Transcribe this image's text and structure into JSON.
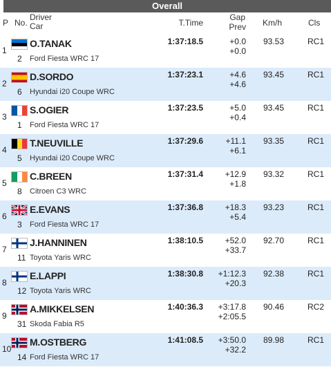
{
  "header": {
    "title": "Overall"
  },
  "columns": {
    "p": "P",
    "no": "No.",
    "driver": "Driver",
    "car": "Car",
    "time": "T.Time",
    "gap": "Gap",
    "prev": "Prev",
    "kmh": "Km/h",
    "cls": "Cls"
  },
  "rows": [
    {
      "p": "1",
      "no": "2",
      "driver": "O.TANAK",
      "car": "Ford Fiesta WRC 17",
      "time": "1:37:18.5",
      "gap": "+0.0",
      "prev": "+0.0",
      "kmh": "93.53",
      "cls": "RC1"
    },
    {
      "p": "2",
      "no": "6",
      "driver": "D.SORDO",
      "car": "Hyundai i20 Coupe WRC",
      "time": "1:37:23.1",
      "gap": "+4.6",
      "prev": "+4.6",
      "kmh": "93.45",
      "cls": "RC1"
    },
    {
      "p": "3",
      "no": "1",
      "driver": "S.OGIER",
      "car": "Ford Fiesta WRC 17",
      "time": "1:37:23.5",
      "gap": "+5.0",
      "prev": "+0.4",
      "kmh": "93.45",
      "cls": "RC1"
    },
    {
      "p": "4",
      "no": "5",
      "driver": "T.NEUVILLE",
      "car": "Hyundai i20 Coupe WRC",
      "time": "1:37:29.6",
      "gap": "+11.1",
      "prev": "+6.1",
      "kmh": "93.35",
      "cls": "RC1"
    },
    {
      "p": "5",
      "no": "8",
      "driver": "C.BREEN",
      "car": "Citroen C3 WRC",
      "time": "1:37:31.4",
      "gap": "+12.9",
      "prev": "+1.8",
      "kmh": "93.32",
      "cls": "RC1"
    },
    {
      "p": "6",
      "no": "3",
      "driver": "E.EVANS",
      "car": "Ford Fiesta WRC 17",
      "time": "1:37:36.8",
      "gap": "+18.3",
      "prev": "+5.4",
      "kmh": "93.23",
      "cls": "RC1"
    },
    {
      "p": "7",
      "no": "11",
      "driver": "J.HANNINEN",
      "car": "Toyota Yaris WRC",
      "time": "1:38:10.5",
      "gap": "+52.0",
      "prev": "+33.7",
      "kmh": "92.70",
      "cls": "RC1"
    },
    {
      "p": "8",
      "no": "12",
      "driver": "E.LAPPI",
      "car": "Toyota Yaris WRC",
      "time": "1:38:30.8",
      "gap": "+1:12.3",
      "prev": "+20.3",
      "kmh": "92.38",
      "cls": "RC1"
    },
    {
      "p": "9",
      "no": "31",
      "driver": "A.MIKKELSEN",
      "car": "Skoda Fabia R5",
      "time": "1:40:36.3",
      "gap": "+3:17.8",
      "prev": "+2:05.5",
      "kmh": "90.46",
      "cls": "RC2"
    },
    {
      "p": "10",
      "no": "14",
      "driver": "M.OSTBERG",
      "car": "Ford Fiesta WRC 17",
      "time": "1:41:08.5",
      "gap": "+3:50.0",
      "prev": "+32.2",
      "kmh": "89.98",
      "cls": "RC1"
    }
  ]
}
